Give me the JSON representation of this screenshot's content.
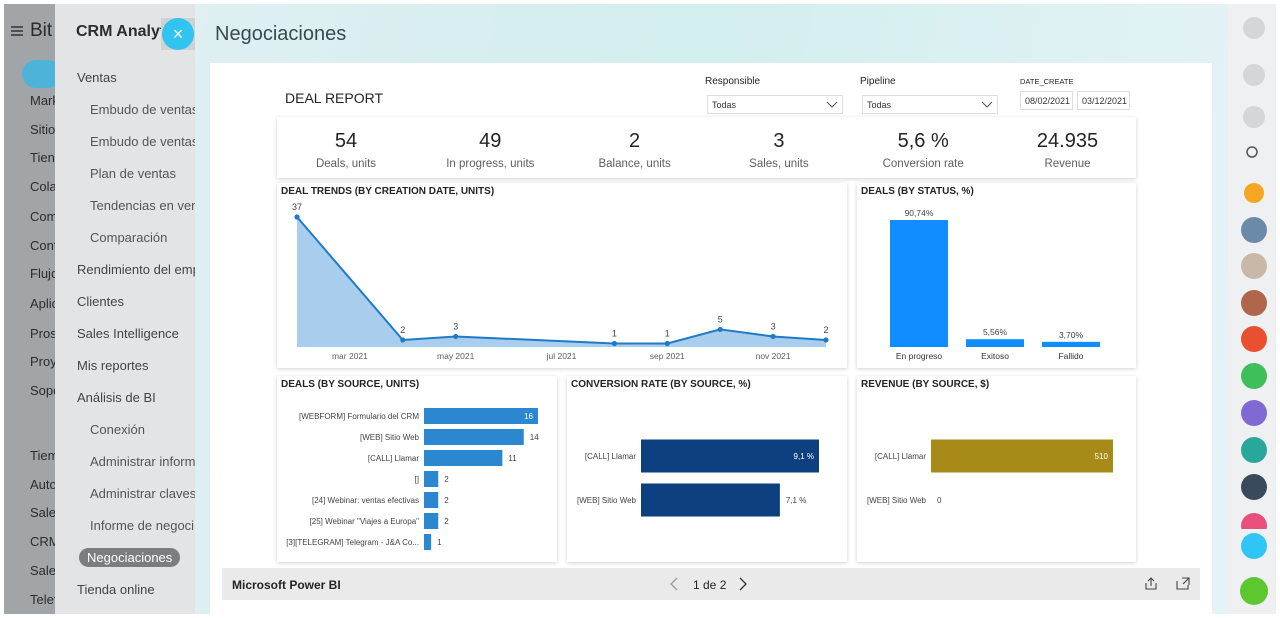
{
  "left_sidebar": {
    "logo": "Bit",
    "items": [
      "Mark",
      "Sitio",
      "Tien",
      "Cola",
      "Com",
      "Cont",
      "Flujo",
      "Aplic",
      "Pros",
      "Proy",
      "Sopo",
      "Tiem",
      "Auto",
      "Sales",
      "CRM",
      "Sales",
      "Telef"
    ]
  },
  "panel": {
    "title": "CRM Analyt",
    "sections": [
      {
        "title": "Ventas",
        "items": [
          "Embudo de ventas",
          "Embudo de ventas",
          "Plan de ventas",
          "Tendencias en ven",
          "Comparación"
        ]
      },
      {
        "title": "Rendimiento del emp",
        "items": []
      },
      {
        "title": "Clientes",
        "items": []
      },
      {
        "title": "Sales Intelligence",
        "items": []
      },
      {
        "title": "Mis reportes",
        "items": []
      },
      {
        "title": "Análisis de BI",
        "items": [
          "Conexión",
          "Administrar inform",
          "Administrar claves",
          "Informe de negoci",
          "Negociaciones"
        ]
      },
      {
        "title": "Tienda online",
        "items": []
      }
    ]
  },
  "page_title": "Negociaciones",
  "report": {
    "title": "DEAL REPORT",
    "filters": {
      "responsible": {
        "label": "Responsible",
        "value": "Todas"
      },
      "pipeline": {
        "label": "Pipeline",
        "value": "Todas"
      },
      "date_create": {
        "label": "DATE_CREATE",
        "from": "08/02/2021",
        "to": "03/12/2021"
      }
    },
    "kpis": [
      {
        "value": "54",
        "label": "Deals, units"
      },
      {
        "value": "49",
        "label": "In progress, units"
      },
      {
        "value": "2",
        "label": "Balance, units"
      },
      {
        "value": "3",
        "label": "Sales, units"
      },
      {
        "value": "5,6 %",
        "label": "Conversion rate"
      },
      {
        "value": "24.935",
        "label": "Revenue"
      }
    ]
  },
  "chart_data": [
    {
      "type": "area",
      "title": "DEAL TRENDS (BY CREATION DATE, UNITS)",
      "x": [
        "2021-02",
        "2021-04",
        "2021-05",
        "2021-08",
        "2021-09",
        "2021-10",
        "2021-11",
        "2021-12"
      ],
      "values": [
        37,
        2,
        3,
        1,
        1,
        5,
        3,
        2
      ],
      "xticks": [
        {
          "value": "2021-03",
          "label": "mar 2021"
        },
        {
          "value": "2021-05",
          "label": "may 2021"
        },
        {
          "value": "2021-07",
          "label": "jul 2021"
        },
        {
          "value": "2021-09",
          "label": "sep 2021"
        },
        {
          "value": "2021-11",
          "label": "nov 2021"
        }
      ],
      "color": "#1f7bc7",
      "fill": "#a9cdec"
    },
    {
      "type": "bar",
      "title": "DEALS (BY STATUS, %)",
      "categories": [
        "En progreso",
        "Exitoso",
        "Fallido"
      ],
      "values": [
        90.74,
        5.56,
        3.7
      ],
      "value_labels": [
        "90,74%",
        "5,56%",
        "3,70%"
      ],
      "color": "#118dff"
    },
    {
      "type": "hbar",
      "title": "DEALS (BY SOURCE, UNITS)",
      "categories": [
        "[WEBFORM] Formulario del CRM",
        "[WEB] Sitio Web",
        "[CALL] Llamar",
        "[]",
        "[24] Webinar: ventas efectivas",
        "[25] Webinar \"Viajes a Europa\"",
        "[3][TELEGRAM] Telegram - J&A Co..."
      ],
      "values": [
        16,
        14,
        11,
        2,
        2,
        2,
        1
      ],
      "color": "#2a87d0"
    },
    {
      "type": "hbar",
      "title": "CONVERSION RATE (BY SOURCE, %)",
      "categories": [
        "[CALL] Llamar",
        "[WEB] Sitio Web"
      ],
      "values": [
        9.1,
        7.1
      ],
      "value_labels": [
        "9,1 %",
        "7,1 %"
      ],
      "color": "#0e3f7e"
    },
    {
      "type": "hbar",
      "title": "REVENUE (BY SOURCE, $)",
      "categories": [
        "[CALL] Llamar",
        "[WEB] Sitio Web"
      ],
      "values": [
        510,
        0
      ],
      "color": "#a88a18"
    }
  ],
  "footer": {
    "brand": "Microsoft Power BI",
    "pager": "1 de 2"
  }
}
